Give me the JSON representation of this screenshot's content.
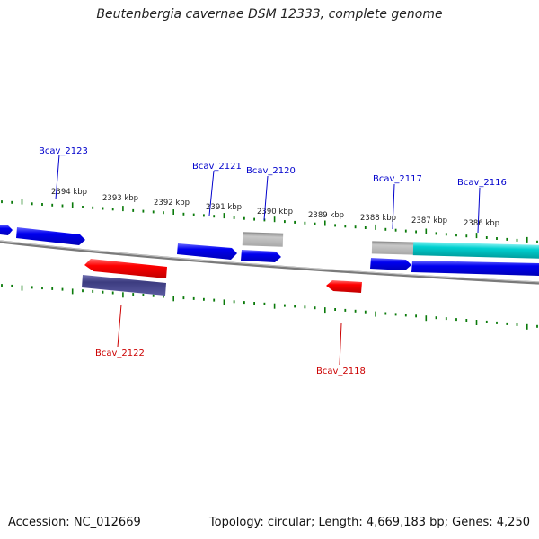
{
  "title": "Beutenbergia cavernae DSM 12333, complete genome",
  "footer": {
    "accession": "Accession: NC_012669",
    "summary": "Topology: circular; Length: 4,669,183 bp; Genes: 4,250"
  },
  "ruler_labels": [
    "2394 kbp",
    "2393 kbp",
    "2392 kbp",
    "2391 kbp",
    "2390 kbp",
    "2389 kbp",
    "2388 kbp",
    "2387 kbp",
    "2386 kbp"
  ],
  "gene_labels_top": [
    "Bcav_2123",
    "Bcav_2121",
    "Bcav_2120",
    "Bcav_2117",
    "Bcav_2116"
  ],
  "gene_labels_bottom": [
    "Bcav_2122",
    "Bcav_2118"
  ],
  "colors": {
    "forward_gene": "#0000e0",
    "reverse_gene": "#ee0000",
    "label_forward": "#0000cc",
    "label_reverse": "#cc0000",
    "pseudo_gene": "#b8b8b8",
    "rna_gene": "#00c8c8",
    "dark_gene": "#3c3c80",
    "tick": "#0a7a0a",
    "backbone": "#808080"
  }
}
